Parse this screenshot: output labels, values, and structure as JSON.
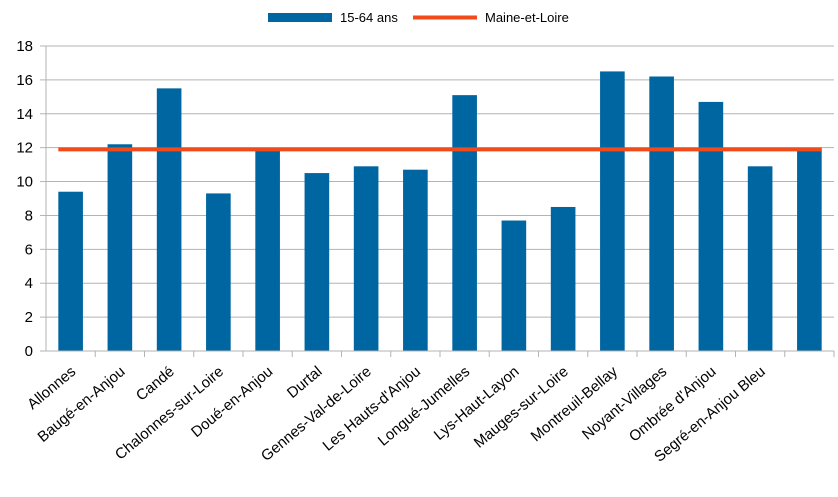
{
  "chart_data": {
    "type": "bar",
    "categories": [
      "Allonnes",
      "Baugé-en-Anjou",
      "Candé",
      "Chalonnes-sur-Loire",
      "Doué-en-Anjou",
      "Durtal",
      "Gennes-Val-de-Loire",
      "Les Hauts-d'Anjou",
      "Longué-Jumelles",
      "Lys-Haut-Layon",
      "Mauges-sur-Loire",
      "Montreuil-Bellay",
      "Noyant-Villages",
      "Ombrée d'Anjou",
      "Segré-en-Anjou Bleu",
      ""
    ],
    "series": [
      {
        "name": "15-64 ans",
        "type": "bar",
        "color": "#0066a1",
        "values": [
          9.4,
          12.2,
          15.5,
          9.3,
          12.0,
          10.5,
          10.9,
          10.7,
          15.1,
          7.7,
          8.5,
          16.5,
          16.2,
          14.7,
          10.9,
          12.0
        ]
      },
      {
        "name": "Maine-et-Loire",
        "type": "line",
        "color": "#f24b1b",
        "values": [
          11.9,
          11.9,
          11.9,
          11.9,
          11.9,
          11.9,
          11.9,
          11.9,
          11.9,
          11.9,
          11.9,
          11.9,
          11.9,
          11.9,
          11.9,
          11.9
        ]
      }
    ],
    "yticks": [
      "0",
      "2",
      "4",
      "6",
      "8",
      "10",
      "12",
      "14",
      "16",
      "18"
    ],
    "ylim": [
      0,
      18
    ],
    "grid": true,
    "legend_position": "top-center",
    "gridline_color": "#b3b3b3"
  }
}
